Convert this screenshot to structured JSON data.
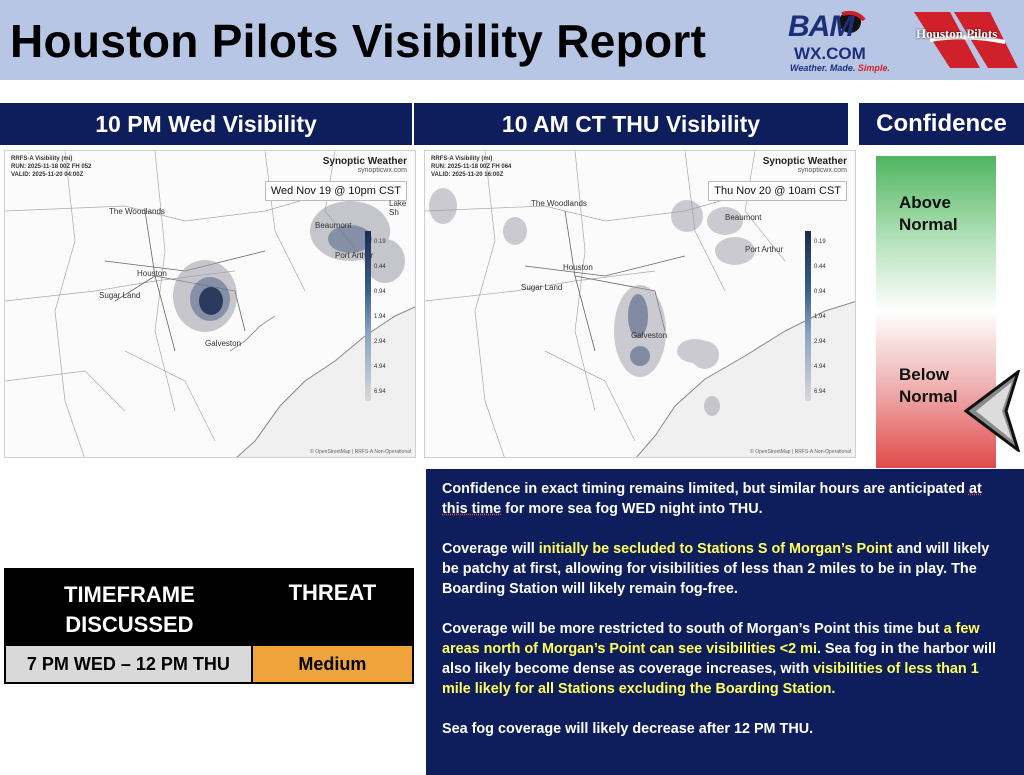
{
  "title": "Houston Pilots Visibility Report",
  "logos": {
    "bam": {
      "line1": "BAM",
      "line2": "WX.COM",
      "tagline_a": "Weather. Made. ",
      "tagline_b": "Simple."
    },
    "houston_pilots": "Houston Pilots"
  },
  "panels": {
    "left": {
      "header": "10 PM Wed Visibility",
      "meta_line1": "RRFS-A Visibility (mi)",
      "meta_line2": "RUN: 2025-11-18 00Z FH 052",
      "meta_line3": "VALID: 2025-11-20 04:00Z",
      "brand": "Synoptic Weather",
      "brand_url": "synopticwx.com",
      "date": "Wed Nov 19 @ 10pm CST",
      "cities": [
        "The Woodlands",
        "Houston",
        "Sugar Land",
        "Galveston",
        "Beaumont",
        "Port Arthur",
        "Lake Sh"
      ],
      "credit": "© OpenStreetMap | RRFS-A Non-Operational"
    },
    "right": {
      "header": "10 AM CT THU Visibility",
      "meta_line1": "RRFS-A Visibility (mi)",
      "meta_line2": "RUN: 2025-11-18 00Z FH 064",
      "meta_line3": "VALID: 2025-11-20 16:00Z",
      "brand": "Synoptic Weather",
      "brand_url": "synopticwx.com",
      "date": "Thu Nov 20 @ 10am CST",
      "cities": [
        "The Woodlands",
        "Beaumont",
        "Port Arthur",
        "Houston",
        "Sugar Land",
        "Galveston"
      ],
      "credit": "© OpenStreetMap | RRFS-A Non-Operational"
    },
    "legend_values": [
      "0.19",
      "0.44",
      "0.94",
      "1.94",
      "2.94",
      "4.94",
      "6.94"
    ]
  },
  "confidence": {
    "header": "Confidence",
    "above": "Above Normal",
    "below": "Below Normal",
    "indicator_level": "below-normal"
  },
  "table": {
    "col1_header": "TIMEFRAME DISCUSSED",
    "col2_header": "THREAT",
    "timeframe": "7 PM WED – 12 PM THU",
    "threat": "Medium",
    "threat_color": "#f0a33a"
  },
  "discussion": {
    "p1a": "Confidence in exact timing remains limited, but similar hours are anticipated ",
    "p1b": "at this time",
    "p1c": " for more sea fog WED night into THU.",
    "p2a": "Coverage will ",
    "p2hl": "initially be secluded to Stations S of Morgan’s Point",
    "p2b": " and will likely be patchy at first, allowing for visibilities of less than 2 miles to be in play. The Boarding Station will likely remain fog-free.",
    "p3a": "Coverage will be more restricted to south of Morgan’s Point this time but ",
    "p3hl1": "a few areas north of Morgan’s Point can see visibilities <2 mi",
    "p3b": ". Sea fog in the harbor will also likely become dense as coverage increases, with ",
    "p3hl2": "visibilities of less than 1 mile likely for all Stations excluding the Boarding Station.",
    "p4": "Sea fog coverage will likely decrease after 12 PM THU."
  },
  "colors": {
    "navy": "#0e1d5c",
    "title_bg": "#b8c6e6",
    "highlight": "#ffff5c"
  }
}
